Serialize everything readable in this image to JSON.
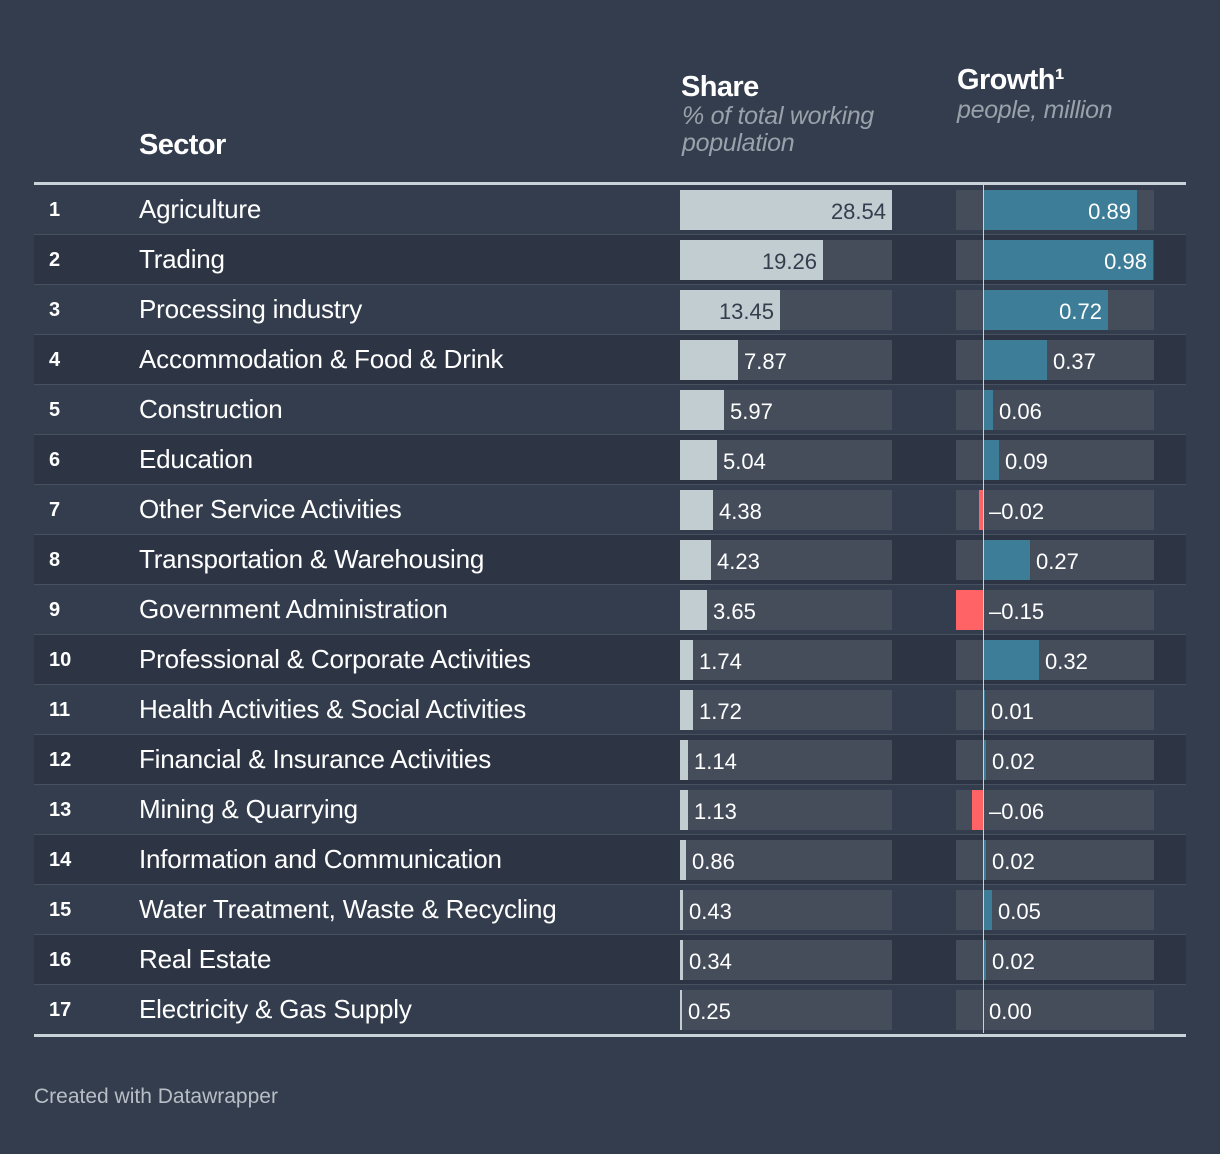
{
  "headers": {
    "sector": "Sector",
    "share_title": "Share",
    "share_subtitle": "% of total working population",
    "growth_title": "Growth¹",
    "growth_subtitle": "people, million"
  },
  "colors": {
    "background": "#333d4d",
    "share_bar": "#c2cdd1",
    "growth_positive": "#3d7d98",
    "growth_negative": "#ff6366",
    "track": "#454d5b"
  },
  "footer": {
    "credit": "Created with Datawrapper"
  },
  "chart_data": {
    "type": "table",
    "columns": [
      "",
      "Sector",
      "Share",
      "Growth¹"
    ],
    "share_max": 28.54,
    "growth_max": 0.98,
    "growth_min": -0.15,
    "rows": [
      {
        "rank": "1",
        "sector": "Agriculture",
        "share": 28.54,
        "share_label": "28.54",
        "growth": 0.89,
        "growth_label": "0.89"
      },
      {
        "rank": "2",
        "sector": "Trading",
        "share": 19.26,
        "share_label": "19.26",
        "growth": 0.98,
        "growth_label": "0.98"
      },
      {
        "rank": "3",
        "sector": "Processing industry",
        "share": 13.45,
        "share_label": "13.45",
        "growth": 0.72,
        "growth_label": "0.72"
      },
      {
        "rank": "4",
        "sector": "Accommodation & Food & Drink",
        "share": 7.87,
        "share_label": "7.87",
        "growth": 0.37,
        "growth_label": "0.37"
      },
      {
        "rank": "5",
        "sector": "Construction",
        "share": 5.97,
        "share_label": "5.97",
        "growth": 0.06,
        "growth_label": "0.06"
      },
      {
        "rank": "6",
        "sector": "Education",
        "share": 5.04,
        "share_label": "5.04",
        "growth": 0.09,
        "growth_label": "0.09"
      },
      {
        "rank": "7",
        "sector": "Other Service Activities",
        "share": 4.38,
        "share_label": "4.38",
        "growth": -0.02,
        "growth_label": "–0.02"
      },
      {
        "rank": "8",
        "sector": "Transportation & Warehousing",
        "share": 4.23,
        "share_label": "4.23",
        "growth": 0.27,
        "growth_label": "0.27"
      },
      {
        "rank": "9",
        "sector": "Government Administration",
        "share": 3.65,
        "share_label": "3.65",
        "growth": -0.15,
        "growth_label": "–0.15"
      },
      {
        "rank": "10",
        "sector": "Professional & Corporate Activities",
        "share": 1.74,
        "share_label": "1.74",
        "growth": 0.32,
        "growth_label": "0.32"
      },
      {
        "rank": "11",
        "sector": "Health Activities & Social Activities",
        "share": 1.72,
        "share_label": "1.72",
        "growth": 0.01,
        "growth_label": "0.01"
      },
      {
        "rank": "12",
        "sector": "Financial & Insurance Activities",
        "share": 1.14,
        "share_label": "1.14",
        "growth": 0.02,
        "growth_label": "0.02"
      },
      {
        "rank": "13",
        "sector": "Mining & Quarrying",
        "share": 1.13,
        "share_label": "1.13",
        "growth": -0.06,
        "growth_label": "–0.06"
      },
      {
        "rank": "14",
        "sector": "Information and Communication",
        "share": 0.86,
        "share_label": "0.86",
        "growth": 0.02,
        "growth_label": "0.02"
      },
      {
        "rank": "15",
        "sector": "Water Treatment, Waste & Recycling",
        "share": 0.43,
        "share_label": "0.43",
        "growth": 0.05,
        "growth_label": "0.05"
      },
      {
        "rank": "16",
        "sector": "Real Estate",
        "share": 0.34,
        "share_label": "0.34",
        "growth": 0.02,
        "growth_label": "0.02"
      },
      {
        "rank": "17",
        "sector": "Electricity & Gas Supply",
        "share": 0.25,
        "share_label": "0.25",
        "growth": 0.0,
        "growth_label": "0.00"
      }
    ]
  }
}
